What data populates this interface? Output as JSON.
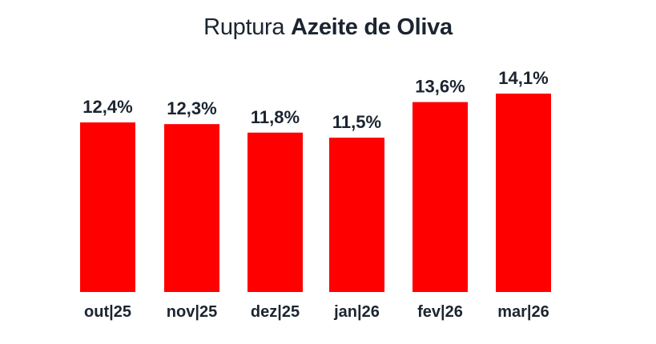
{
  "chart_data": {
    "type": "bar",
    "title_prefix": "Ruptura",
    "title_bold": "Azeite de Oliva",
    "categories": [
      "out|25",
      "nov|25",
      "dez|25",
      "jan|26",
      "fev|26",
      "mar|26"
    ],
    "values": [
      12.4,
      12.3,
      11.8,
      11.5,
      13.6,
      14.1
    ],
    "value_labels": [
      "12,4%",
      "12,3%",
      "11,8%",
      "11,5%",
      "13,6%",
      "14,1%"
    ],
    "xlabel": "",
    "ylabel": "",
    "ylim": [
      2.4,
      14.1
    ],
    "grid": false,
    "bar_color": "#ff0000"
  }
}
